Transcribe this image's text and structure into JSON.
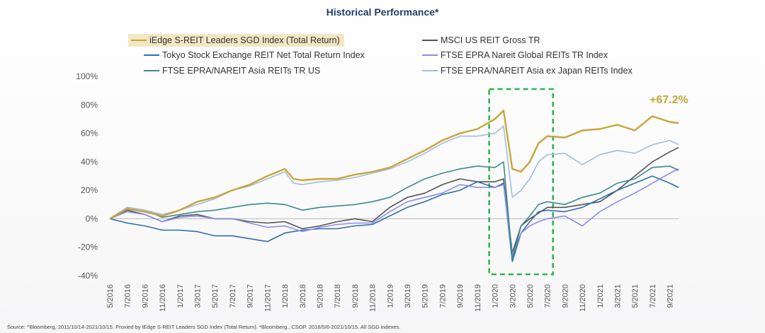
{
  "title": "Historical Performance*",
  "source": "Source: ^Bloomberg, 2011/10/14-2021/10/15. Proxied by iEdge S-REIT Leaders SGD Index (Total Return). *Bloomberg., CSOP. 2016/5/6-2021/10/15. All SGD indexes.",
  "callout": "+67.2%",
  "chart_data": {
    "type": "line",
    "x_start": "2016-05-06",
    "x_end": "2021-10-15",
    "x_ticks": [
      "5/2016",
      "7/2016",
      "9/2016",
      "11/2016",
      "1/2017",
      "3/2017",
      "5/2017",
      "7/2017",
      "9/2017",
      "11/2017",
      "1/2018",
      "3/2018",
      "5/2018",
      "7/2018",
      "9/2018",
      "11/2018",
      "1/2019",
      "3/2019",
      "5/2019",
      "7/2019",
      "9/2019",
      "11/2019",
      "1/2020",
      "3/2020",
      "5/2020",
      "7/2020",
      "9/2020",
      "11/2020",
      "1/2021",
      "3/2021",
      "5/2021",
      "7/2021",
      "9/2021"
    ],
    "y_ticks": [
      "100%",
      "80%",
      "60%",
      "40%",
      "20%",
      "0%",
      "-20%",
      "-40%"
    ],
    "ylim": [
      -40,
      100
    ],
    "y_unit": "%",
    "highlight_box": {
      "x_from": "2020-01",
      "x_to": "2020-07",
      "color": "#2db34a"
    },
    "series": [
      {
        "name": "iEdge S-REIT Leaders SGD Index (Total Return)",
        "color": "#c9a539",
        "highlight": true,
        "points": [
          [
            "2016-05",
            0
          ],
          [
            "2016-07",
            7
          ],
          [
            "2016-09",
            5
          ],
          [
            "2016-11",
            2
          ],
          [
            "2017-01",
            6
          ],
          [
            "2017-03",
            12
          ],
          [
            "2017-05",
            15
          ],
          [
            "2017-07",
            20
          ],
          [
            "2017-09",
            24
          ],
          [
            "2017-11",
            30
          ],
          [
            "2018-01",
            35
          ],
          [
            "2018-02",
            28
          ],
          [
            "2018-03",
            27
          ],
          [
            "2018-05",
            28
          ],
          [
            "2018-07",
            28
          ],
          [
            "2018-09",
            31
          ],
          [
            "2018-11",
            33
          ],
          [
            "2019-01",
            36
          ],
          [
            "2019-03",
            42
          ],
          [
            "2019-05",
            48
          ],
          [
            "2019-07",
            55
          ],
          [
            "2019-09",
            60
          ],
          [
            "2019-11",
            63
          ],
          [
            "2020-01",
            70
          ],
          [
            "2020-02",
            76
          ],
          [
            "2020-03",
            35
          ],
          [
            "2020-04",
            33
          ],
          [
            "2020-05",
            40
          ],
          [
            "2020-06",
            53
          ],
          [
            "2020-07",
            58
          ],
          [
            "2020-09",
            57
          ],
          [
            "2020-11",
            62
          ],
          [
            "2021-01",
            63
          ],
          [
            "2021-03",
            66
          ],
          [
            "2021-05",
            62
          ],
          [
            "2021-07",
            72
          ],
          [
            "2021-09",
            68
          ],
          [
            "2021-10",
            67.2
          ]
        ]
      },
      {
        "name": "MSCI US REIT Gross TR",
        "color": "#555555",
        "points": [
          [
            "2016-05",
            0
          ],
          [
            "2016-07",
            6
          ],
          [
            "2016-09",
            3
          ],
          [
            "2016-11",
            -2
          ],
          [
            "2017-01",
            2
          ],
          [
            "2017-03",
            3
          ],
          [
            "2017-05",
            0
          ],
          [
            "2017-07",
            0
          ],
          [
            "2017-09",
            -2
          ],
          [
            "2017-11",
            -3
          ],
          [
            "2018-01",
            -2
          ],
          [
            "2018-03",
            -7
          ],
          [
            "2018-05",
            -5
          ],
          [
            "2018-07",
            -2
          ],
          [
            "2018-09",
            0
          ],
          [
            "2018-11",
            -2
          ],
          [
            "2019-01",
            8
          ],
          [
            "2019-03",
            15
          ],
          [
            "2019-05",
            18
          ],
          [
            "2019-07",
            24
          ],
          [
            "2019-09",
            28
          ],
          [
            "2019-11",
            26
          ],
          [
            "2020-01",
            26
          ],
          [
            "2020-02",
            28
          ],
          [
            "2020-03",
            -24
          ],
          [
            "2020-04",
            -5
          ],
          [
            "2020-05",
            0
          ],
          [
            "2020-06",
            4
          ],
          [
            "2020-07",
            8
          ],
          [
            "2020-09",
            8
          ],
          [
            "2020-11",
            10
          ],
          [
            "2021-01",
            12
          ],
          [
            "2021-03",
            20
          ],
          [
            "2021-05",
            30
          ],
          [
            "2021-07",
            40
          ],
          [
            "2021-09",
            47
          ],
          [
            "2021-10",
            50
          ]
        ]
      },
      {
        "name": "Tokyo Stock Exchange REIT Net Total Return Index",
        "color": "#2f6fae",
        "points": [
          [
            "2016-05",
            0
          ],
          [
            "2016-07",
            -3
          ],
          [
            "2016-09",
            -5
          ],
          [
            "2016-11",
            -8
          ],
          [
            "2017-01",
            -8
          ],
          [
            "2017-03",
            -9
          ],
          [
            "2017-05",
            -12
          ],
          [
            "2017-07",
            -12
          ],
          [
            "2017-09",
            -14
          ],
          [
            "2017-11",
            -16
          ],
          [
            "2018-01",
            -10
          ],
          [
            "2018-03",
            -8
          ],
          [
            "2018-05",
            -7
          ],
          [
            "2018-07",
            -7
          ],
          [
            "2018-09",
            -5
          ],
          [
            "2018-11",
            -4
          ],
          [
            "2019-01",
            2
          ],
          [
            "2019-03",
            8
          ],
          [
            "2019-05",
            12
          ],
          [
            "2019-07",
            17
          ],
          [
            "2019-09",
            20
          ],
          [
            "2019-11",
            26
          ],
          [
            "2020-01",
            22
          ],
          [
            "2020-02",
            25
          ],
          [
            "2020-03",
            -30
          ],
          [
            "2020-04",
            -10
          ],
          [
            "2020-05",
            -2
          ],
          [
            "2020-06",
            5
          ],
          [
            "2020-07",
            6
          ],
          [
            "2020-09",
            5
          ],
          [
            "2020-11",
            8
          ],
          [
            "2021-01",
            14
          ],
          [
            "2021-03",
            20
          ],
          [
            "2021-05",
            25
          ],
          [
            "2021-07",
            30
          ],
          [
            "2021-09",
            25
          ],
          [
            "2021-10",
            22
          ]
        ]
      },
      {
        "name": "FTSE EPRA Nareit Global REITs TR Index",
        "color": "#8c8cf0",
        "points": [
          [
            "2016-05",
            0
          ],
          [
            "2016-07",
            5
          ],
          [
            "2016-09",
            3
          ],
          [
            "2016-11",
            -2
          ],
          [
            "2017-01",
            1
          ],
          [
            "2017-03",
            2
          ],
          [
            "2017-05",
            0
          ],
          [
            "2017-07",
            0
          ],
          [
            "2017-09",
            -3
          ],
          [
            "2017-11",
            -6
          ],
          [
            "2018-01",
            -5
          ],
          [
            "2018-03",
            -9
          ],
          [
            "2018-05",
            -6
          ],
          [
            "2018-07",
            -4
          ],
          [
            "2018-09",
            -3
          ],
          [
            "2018-11",
            -3
          ],
          [
            "2019-01",
            5
          ],
          [
            "2019-03",
            12
          ],
          [
            "2019-05",
            15
          ],
          [
            "2019-07",
            18
          ],
          [
            "2019-09",
            24
          ],
          [
            "2019-11",
            22
          ],
          [
            "2020-01",
            22
          ],
          [
            "2020-02",
            24
          ],
          [
            "2020-03",
            -25
          ],
          [
            "2020-04",
            -10
          ],
          [
            "2020-05",
            -5
          ],
          [
            "2020-06",
            -2
          ],
          [
            "2020-07",
            0
          ],
          [
            "2020-09",
            2
          ],
          [
            "2020-11",
            -5
          ],
          [
            "2021-01",
            5
          ],
          [
            "2021-03",
            12
          ],
          [
            "2021-05",
            18
          ],
          [
            "2021-07",
            25
          ],
          [
            "2021-09",
            32
          ],
          [
            "2021-10",
            35
          ]
        ]
      },
      {
        "name": "FTSE EPRA/NAREIT Asia REITs TR US",
        "color": "#3c8c8c",
        "points": [
          [
            "2016-05",
            0
          ],
          [
            "2016-07",
            8
          ],
          [
            "2016-09",
            6
          ],
          [
            "2016-11",
            1
          ],
          [
            "2017-01",
            3
          ],
          [
            "2017-03",
            5
          ],
          [
            "2017-05",
            6
          ],
          [
            "2017-07",
            8
          ],
          [
            "2017-09",
            10
          ],
          [
            "2017-11",
            11
          ],
          [
            "2018-01",
            10
          ],
          [
            "2018-03",
            6
          ],
          [
            "2018-05",
            8
          ],
          [
            "2018-07",
            9
          ],
          [
            "2018-09",
            10
          ],
          [
            "2018-11",
            12
          ],
          [
            "2019-01",
            15
          ],
          [
            "2019-03",
            22
          ],
          [
            "2019-05",
            28
          ],
          [
            "2019-07",
            32
          ],
          [
            "2019-09",
            35
          ],
          [
            "2019-11",
            37
          ],
          [
            "2020-01",
            36
          ],
          [
            "2020-02",
            40
          ],
          [
            "2020-03",
            -28
          ],
          [
            "2020-04",
            -5
          ],
          [
            "2020-05",
            2
          ],
          [
            "2020-06",
            10
          ],
          [
            "2020-07",
            12
          ],
          [
            "2020-09",
            10
          ],
          [
            "2020-11",
            15
          ],
          [
            "2021-01",
            18
          ],
          [
            "2021-03",
            25
          ],
          [
            "2021-05",
            28
          ],
          [
            "2021-07",
            36
          ],
          [
            "2021-09",
            37
          ],
          [
            "2021-10",
            34
          ]
        ]
      },
      {
        "name": "FTSE EPRA/NAREIT Asia ex Japan REITs Index",
        "color": "#9fbfdf",
        "points": [
          [
            "2016-05",
            0
          ],
          [
            "2016-07",
            8
          ],
          [
            "2016-09",
            6
          ],
          [
            "2016-11",
            3
          ],
          [
            "2017-01",
            6
          ],
          [
            "2017-03",
            10
          ],
          [
            "2017-05",
            14
          ],
          [
            "2017-07",
            20
          ],
          [
            "2017-09",
            23
          ],
          [
            "2017-11",
            28
          ],
          [
            "2018-01",
            33
          ],
          [
            "2018-02",
            25
          ],
          [
            "2018-03",
            24
          ],
          [
            "2018-05",
            26
          ],
          [
            "2018-07",
            27
          ],
          [
            "2018-09",
            29
          ],
          [
            "2018-11",
            32
          ],
          [
            "2019-01",
            35
          ],
          [
            "2019-03",
            40
          ],
          [
            "2019-05",
            46
          ],
          [
            "2019-07",
            53
          ],
          [
            "2019-09",
            58
          ],
          [
            "2019-11",
            58
          ],
          [
            "2020-01",
            60
          ],
          [
            "2020-02",
            65
          ],
          [
            "2020-03",
            15
          ],
          [
            "2020-04",
            20
          ],
          [
            "2020-05",
            28
          ],
          [
            "2020-06",
            40
          ],
          [
            "2020-07",
            45
          ],
          [
            "2020-09",
            46
          ],
          [
            "2020-11",
            38
          ],
          [
            "2021-01",
            45
          ],
          [
            "2021-03",
            48
          ],
          [
            "2021-05",
            46
          ],
          [
            "2021-07",
            52
          ],
          [
            "2021-09",
            55
          ],
          [
            "2021-10",
            52
          ]
        ]
      }
    ]
  }
}
